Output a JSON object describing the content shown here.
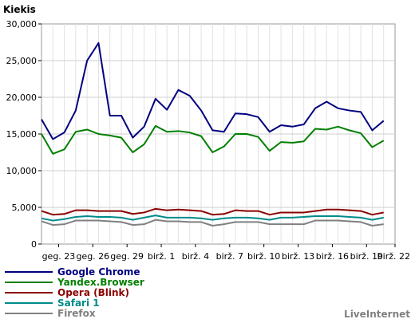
{
  "chart_data": {
    "type": "line",
    "ylabel": "Kiekis",
    "ylim": [
      0,
      30000
    ],
    "yticks": [
      0,
      5000,
      10000,
      15000,
      20000,
      25000,
      30000
    ],
    "ytick_labels": [
      "0",
      "5,000",
      "10,000",
      "15,000",
      "20,000",
      "25,000",
      "30,000"
    ],
    "xlim": [
      0,
      31
    ],
    "x_tick_positions": [
      1.5,
      4.5,
      7.5,
      10.5,
      13.5,
      16.5,
      19.5,
      22.5,
      25.5,
      28.5,
      31
    ],
    "x_tick_labels": [
      "geg. 23",
      "geg. 26",
      "geg. 29",
      "birž. 1",
      "birž. 4",
      "birž. 7",
      "birž. 10",
      "birž. 13",
      "birž. 16",
      "birž. 19",
      "birž. 22"
    ],
    "grid": true,
    "background": "#ffffff",
    "series": [
      {
        "name": "Google Chrome",
        "color": "#000080",
        "values": [
          17000,
          14300,
          15200,
          18200,
          25000,
          27400,
          17500,
          17500,
          14500,
          16000,
          19800,
          18300,
          21000,
          20200,
          18200,
          15500,
          15300,
          17800,
          17700,
          17300,
          15300,
          16200,
          16000,
          16300,
          18500,
          19400,
          18500,
          18200,
          18000,
          15500,
          16800
        ]
      },
      {
        "name": "Yandex.Browser",
        "color": "#008000",
        "values": [
          15000,
          12300,
          12900,
          15300,
          15600,
          15000,
          14800,
          14500,
          12500,
          13600,
          16100,
          15300,
          15400,
          15200,
          14700,
          12500,
          13300,
          15000,
          15000,
          14600,
          12700,
          13900,
          13800,
          14000,
          15700,
          15600,
          16000,
          15500,
          15100,
          13200,
          14100
        ]
      },
      {
        "name": "Opera (Blink)",
        "color": "#8b0000",
        "values": [
          4500,
          4000,
          4100,
          4600,
          4600,
          4500,
          4500,
          4500,
          4100,
          4300,
          4800,
          4600,
          4700,
          4600,
          4500,
          4000,
          4100,
          4600,
          4500,
          4500,
          4000,
          4300,
          4300,
          4300,
          4500,
          4700,
          4700,
          4600,
          4500,
          4000,
          4300
        ]
      },
      {
        "name": "Safari 1",
        "color": "#008b8b",
        "values": [
          3500,
          3200,
          3400,
          3700,
          3800,
          3700,
          3700,
          3600,
          3300,
          3600,
          3900,
          3600,
          3600,
          3600,
          3500,
          3300,
          3500,
          3600,
          3600,
          3500,
          3300,
          3600,
          3600,
          3700,
          3800,
          3800,
          3800,
          3700,
          3600,
          3300,
          3600
        ]
      },
      {
        "name": "Firefox",
        "color": "#808080",
        "values": [
          3100,
          2600,
          2700,
          3200,
          3200,
          3200,
          3100,
          3000,
          2600,
          2700,
          3300,
          3100,
          3100,
          3000,
          3000,
          2500,
          2700,
          3000,
          3000,
          3000,
          2700,
          2700,
          2700,
          2700,
          3200,
          3200,
          3200,
          3100,
          3000,
          2500,
          2700
        ]
      }
    ],
    "credit": "LiveInternet"
  }
}
